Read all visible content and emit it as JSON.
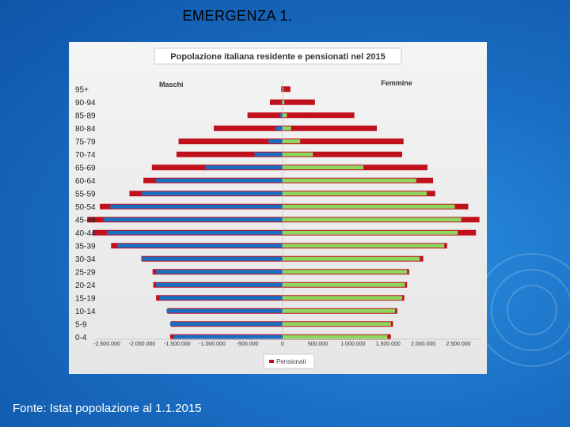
{
  "slide": {
    "title": "EMERGENZA 1.",
    "footer": "Fonte: Istat popolazione al 1.1.2015"
  },
  "colors": {
    "maschi": "#1b6fc2",
    "femmine": "#8fd660",
    "pensionati": "#c0101c"
  },
  "chart_data": {
    "type": "bar",
    "orientation": "horizontal-population-pyramid",
    "title": "Popolazione italiana residente e pensionati nel 2015",
    "left_label": "Maschi",
    "right_label": "Femmine",
    "legend": {
      "entries": [
        "Pensionati"
      ],
      "position": "bottom"
    },
    "categories": [
      "95+",
      "90-94",
      "85-89",
      "80-84",
      "75-79",
      "70-74",
      "65-69",
      "60-64",
      "55-59",
      "50-54",
      "45-49",
      "40-44",
      "35-39",
      "30-34",
      "25-29",
      "20-24",
      "15-19",
      "10-14",
      "5-9",
      "0-4"
    ],
    "xticks": [
      "-2.500.000",
      "-2.000.000",
      "-1.500.000",
      "-1.000.000",
      "-500.000",
      "0",
      "500.000",
      "1.000.000",
      "1.500.000",
      "2.000.000",
      "2.500.000"
    ],
    "xlim": [
      -2500000,
      2500000
    ],
    "series": [
      {
        "name": "Maschi",
        "values": [
          -5000,
          -20000,
          -40000,
          -100000,
          -200000,
          -400000,
          -1100000,
          -1800000,
          -2000000,
          -2450000,
          -2550000,
          -2500000,
          -2350000,
          -2000000,
          -1800000,
          -1800000,
          -1750000,
          -1650000,
          -1600000,
          -1550000
        ]
      },
      {
        "name": "Femmine",
        "values": [
          12000,
          25000,
          60000,
          120000,
          250000,
          430000,
          1150000,
          1900000,
          2050000,
          2450000,
          2540000,
          2490000,
          2300000,
          1950000,
          1770000,
          1740000,
          1700000,
          1600000,
          1540000,
          1490000
        ]
      },
      {
        "name": "Pensionati (Maschi)",
        "values": [
          -20000,
          -180000,
          -500000,
          -980000,
          -1480000,
          -1510000,
          -1860000,
          -1980000,
          -2180000,
          -2600000,
          -2780000,
          -2700000,
          -2440000,
          -2010000,
          -1850000,
          -1840000,
          -1800000,
          -1640000,
          -1590000,
          -1600000
        ]
      },
      {
        "name": "Pensionati (Femmine)",
        "values": [
          110000,
          460000,
          1020000,
          1340000,
          1720000,
          1700000,
          2060000,
          2140000,
          2170000,
          2640000,
          2800000,
          2750000,
          2340000,
          2000000,
          1800000,
          1770000,
          1730000,
          1630000,
          1570000,
          1540000
        ]
      }
    ]
  }
}
